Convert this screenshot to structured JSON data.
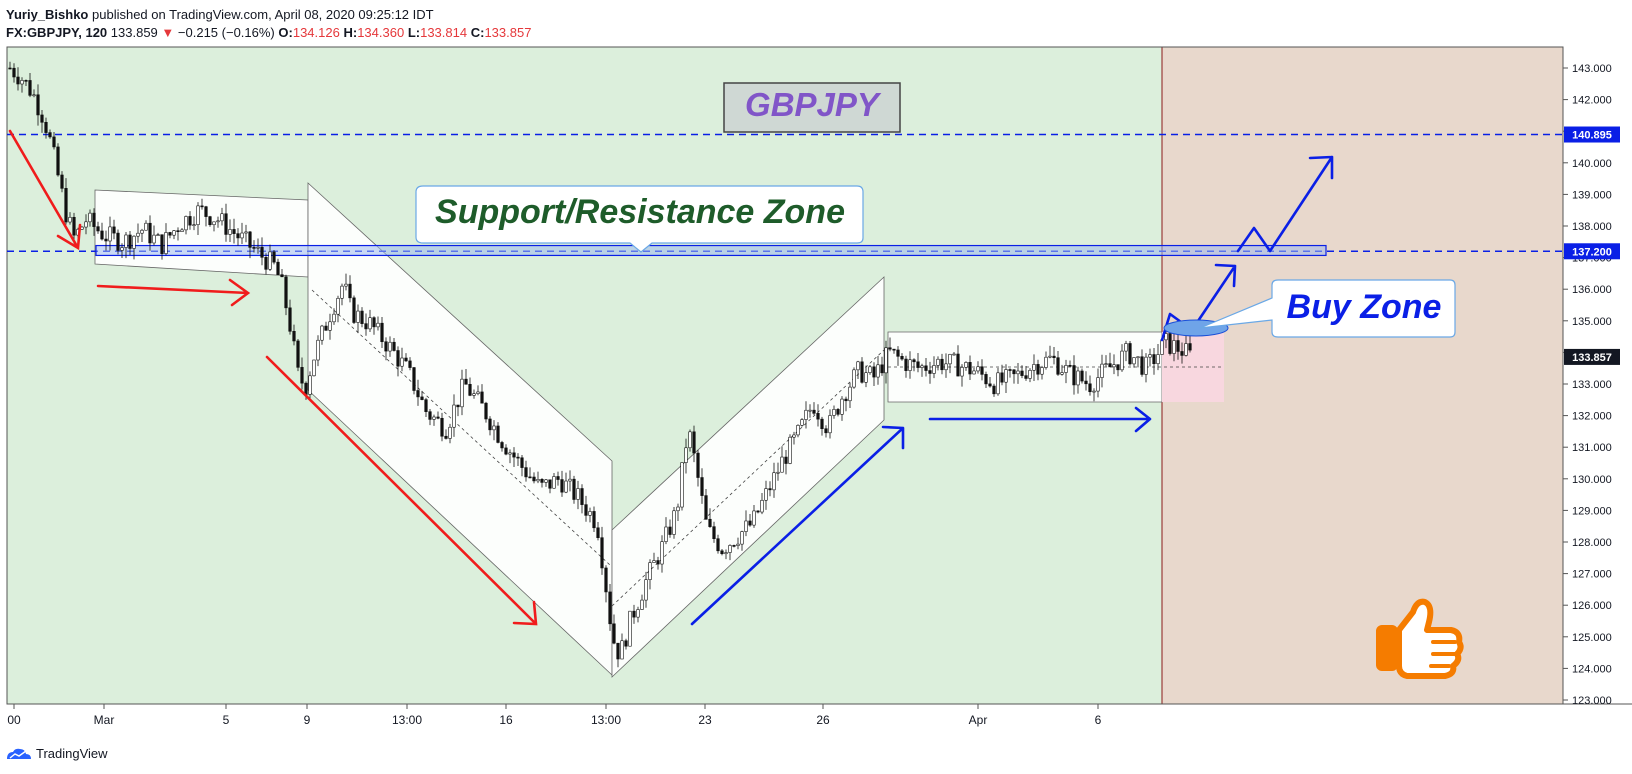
{
  "header": {
    "author": "Yuriy_Bishko",
    "published": "published on TradingView.com, April 08, 2020 09:25:12 IDT",
    "symbol": "FX:GBPJPY, 120",
    "last": "133.859",
    "change": "−0.215 (−0.16%)",
    "open_label": "O:",
    "open": "134.126",
    "high_label": "H:",
    "high": "134.360",
    "low_label": "L:",
    "low": "133.814",
    "close_label": "C:",
    "close": "133.857"
  },
  "footer": {
    "brand": "TradingView"
  },
  "colors": {
    "up_bg": "#dcefdc",
    "future_bg": "#e8d8cc",
    "red_arrow": "#f01c1c",
    "blue_arrow": "#0a1fe6",
    "dashed": "#0a1fe6",
    "thumb": "#f57c00"
  },
  "chart_data": {
    "type": "candlestick",
    "y_axis_ticks": [
      "143.000",
      "142.000",
      "141.000",
      "140.000",
      "139.000",
      "138.000",
      "137.000",
      "136.000",
      "135.000",
      "134.000",
      "133.000",
      "132.000",
      "131.000",
      "130.000",
      "129.000",
      "128.000",
      "127.000",
      "126.000",
      "125.000",
      "124.000",
      "123.000"
    ],
    "ylim": [
      123,
      143
    ],
    "x_axis_ticks": [
      "00",
      "Mar",
      "5",
      "9",
      "13:00",
      "16",
      "13:00",
      "23",
      "26",
      "Apr",
      "6"
    ],
    "price_labels": [
      {
        "value": 140.895,
        "text": "140.895"
      },
      {
        "value": 137.2,
        "text": "137.200"
      },
      {
        "value": 133.857,
        "text": "133.857"
      }
    ],
    "price_path": [
      [
        0,
        143.0
      ],
      [
        0.3,
        142.7
      ],
      [
        0.6,
        142.2
      ],
      [
        0.9,
        141.4
      ],
      [
        1.1,
        140.5
      ],
      [
        1.3,
        139.4
      ],
      [
        1.5,
        138.3
      ],
      [
        1.7,
        137.6
      ],
      [
        2,
        138.2
      ],
      [
        2.5,
        137.7
      ],
      [
        3,
        137.5
      ],
      [
        3.5,
        137.9
      ],
      [
        4,
        137.4
      ],
      [
        4.5,
        138.1
      ],
      [
        5,
        138.5
      ],
      [
        5.5,
        138.2
      ],
      [
        6,
        137.7
      ],
      [
        6.5,
        137.2
      ],
      [
        7,
        136.7
      ],
      [
        7.2,
        136.0
      ],
      [
        7.4,
        134.8
      ],
      [
        7.6,
        133.3
      ],
      [
        7.8,
        132.9
      ],
      [
        8,
        133.8
      ],
      [
        8.5,
        135.4
      ],
      [
        8.8,
        136.2
      ],
      [
        9,
        135.3
      ],
      [
        9.5,
        134.9
      ],
      [
        10,
        134.2
      ],
      [
        10.5,
        133.4
      ],
      [
        11,
        132.1
      ],
      [
        11.5,
        131.6
      ],
      [
        12,
        133.0
      ],
      [
        12.5,
        132.2
      ],
      [
        13,
        131.2
      ],
      [
        13.5,
        130.4
      ],
      [
        14,
        129.7
      ],
      [
        14.5,
        130.0
      ],
      [
        15,
        129.4
      ],
      [
        15.5,
        128.6
      ],
      [
        15.7,
        126.9
      ],
      [
        15.9,
        125.0
      ],
      [
        16.1,
        124.4
      ],
      [
        16.4,
        125.6
      ],
      [
        16.8,
        126.8
      ],
      [
        17.2,
        127.8
      ],
      [
        17.6,
        129.0
      ],
      [
        17.9,
        131.6
      ],
      [
        18.1,
        130.4
      ],
      [
        18.4,
        128.4
      ],
      [
        18.8,
        127.8
      ],
      [
        19.2,
        128.2
      ],
      [
        19.6,
        128.6
      ],
      [
        20,
        129.6
      ],
      [
        20.4,
        130.6
      ],
      [
        20.8,
        131.4
      ],
      [
        21.2,
        132.4
      ],
      [
        21.6,
        131.6
      ],
      [
        22,
        132.7
      ],
      [
        22.4,
        133.4
      ],
      [
        22.8,
        133.2
      ],
      [
        23.2,
        134.0
      ],
      [
        23.6,
        133.7
      ],
      [
        24,
        133.5
      ],
      [
        24.5,
        133.7
      ],
      [
        25,
        133.6
      ],
      [
        25.5,
        133.4
      ],
      [
        26,
        133.0
      ],
      [
        26.5,
        133.2
      ],
      [
        27,
        133.6
      ],
      [
        27.5,
        133.8
      ],
      [
        28,
        133.3
      ],
      [
        28.5,
        133.0
      ],
      [
        29,
        133.5
      ],
      [
        29.5,
        134.0
      ],
      [
        30,
        133.5
      ],
      [
        30.5,
        134.3
      ],
      [
        30.9,
        134.1
      ],
      [
        31.2,
        133.86
      ]
    ],
    "annotations": [
      {
        "type": "label",
        "text": "GBPJPY"
      },
      {
        "type": "callout",
        "text": "Support/Resistance Zone"
      },
      {
        "type": "callout",
        "text": "Buy Zone"
      },
      {
        "type": "hline",
        "value": 140.895,
        "style": "dashed"
      },
      {
        "type": "hline",
        "value": 137.2,
        "style": "dashed"
      },
      {
        "type": "zone",
        "range": [
          137.1,
          137.35
        ]
      },
      {
        "type": "icon",
        "name": "thumbs-up-icon"
      }
    ],
    "grid": false
  }
}
